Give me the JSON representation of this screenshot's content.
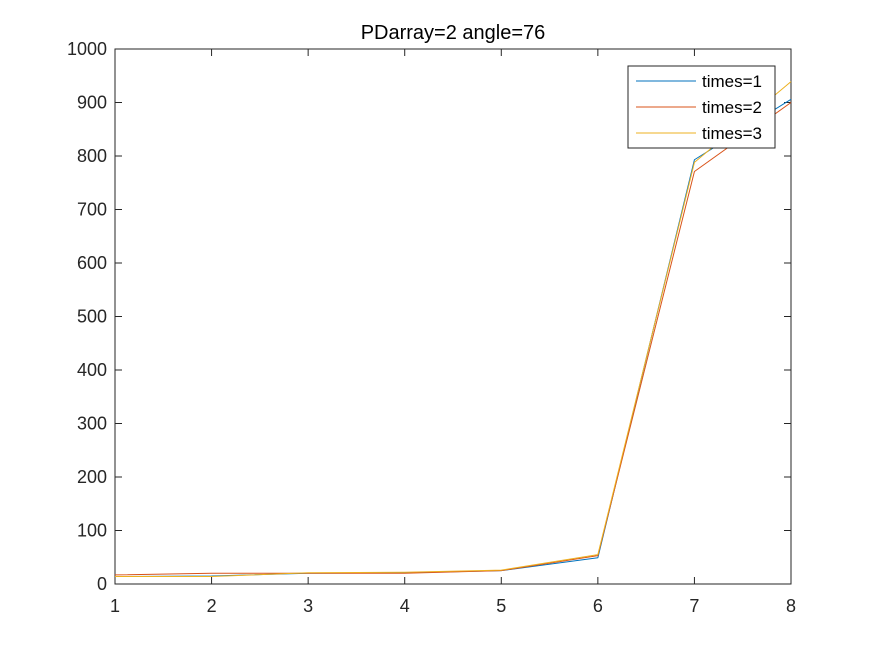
{
  "chart_data": {
    "type": "line",
    "title": "PDarray=2  angle=76",
    "xlabel": "",
    "ylabel": "",
    "x": [
      1,
      2,
      3,
      4,
      5,
      6,
      7,
      8
    ],
    "xlim": [
      1,
      8
    ],
    "ylim": [
      0,
      1000
    ],
    "xticks": [
      "1",
      "2",
      "3",
      "4",
      "5",
      "6",
      "7",
      "8"
    ],
    "yticks": [
      "0",
      "100",
      "200",
      "300",
      "400",
      "500",
      "600",
      "700",
      "800",
      "900",
      "1000"
    ],
    "grid": false,
    "legend_position": "top-right",
    "series": [
      {
        "name": "times=1",
        "color": "#0072BD",
        "values": [
          14,
          15,
          20,
          21,
          25,
          49,
          793,
          906
        ]
      },
      {
        "name": "times=2",
        "color": "#D95319",
        "values": [
          17,
          20,
          20,
          20,
          25,
          53,
          771,
          900
        ]
      },
      {
        "name": "times=3",
        "color": "#EDB120",
        "values": [
          14,
          14,
          21,
          22,
          26,
          55,
          788,
          939
        ]
      }
    ]
  }
}
